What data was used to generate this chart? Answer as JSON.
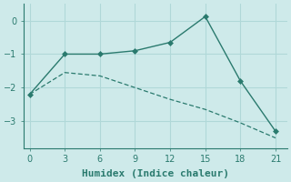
{
  "xlabel": "Humidex (Indice chaleur)",
  "bg_color": "#ceeaea",
  "grid_color": "#b0d8d8",
  "line1": {
    "x": [
      0,
      3,
      6,
      9,
      12,
      15,
      18,
      21
    ],
    "y": [
      -2.2,
      -1.0,
      -1.0,
      -0.9,
      -0.65,
      0.12,
      -1.8,
      -3.3
    ],
    "color": "#2a7a6e",
    "style": "-",
    "marker": "D",
    "markersize": 3
  },
  "line2": {
    "x": [
      0,
      3,
      6,
      9,
      12,
      15,
      18,
      21
    ],
    "y": [
      -2.2,
      -1.55,
      -1.65,
      -2.0,
      -2.35,
      -2.65,
      -3.05,
      -3.5
    ],
    "color": "#2a7a6e",
    "style": "--",
    "marker": null
  },
  "xlim": [
    -0.5,
    22
  ],
  "ylim": [
    -3.8,
    0.5
  ],
  "xticks": [
    0,
    3,
    6,
    9,
    12,
    15,
    18,
    21
  ],
  "yticks": [
    0,
    -1,
    -2,
    -3
  ],
  "tick_fontsize": 7,
  "label_fontsize": 8
}
